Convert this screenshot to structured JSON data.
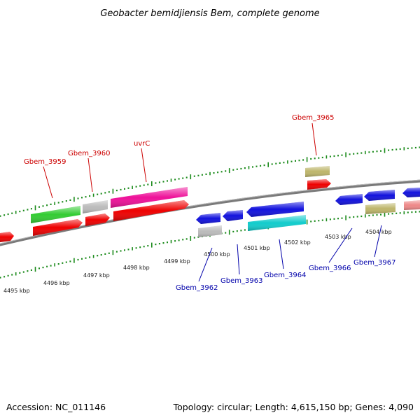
{
  "title": "Geobacter bemidjiensis Bem, complete genome",
  "footer": {
    "accession": "Accession: NC_011146",
    "summary": "Topology: circular; Length: 4,615,150 bp; Genes: 4,090"
  },
  "colors": {
    "backbone": "#888888",
    "tick": "#1a8a1a",
    "label_top": "#cc0000",
    "label_bottom": "#0000aa"
  },
  "kbp_labels": [
    "4495 kbp",
    "4496 kbp",
    "4497 kbp",
    "4498 kbp",
    "4499 kbp",
    "4500 kbp",
    "4501 kbp",
    "4502 kbp",
    "4503 kbp",
    "4504 kbp"
  ],
  "gene_labels_top": [
    "Gbem_3959",
    "Gbem_3960",
    "uvrC",
    "Gbem_3965"
  ],
  "gene_labels_bottom": [
    "Gbem_3962",
    "Gbem_3963",
    "Gbem_3964",
    "Gbem_3966",
    "Gbem_3967"
  ]
}
